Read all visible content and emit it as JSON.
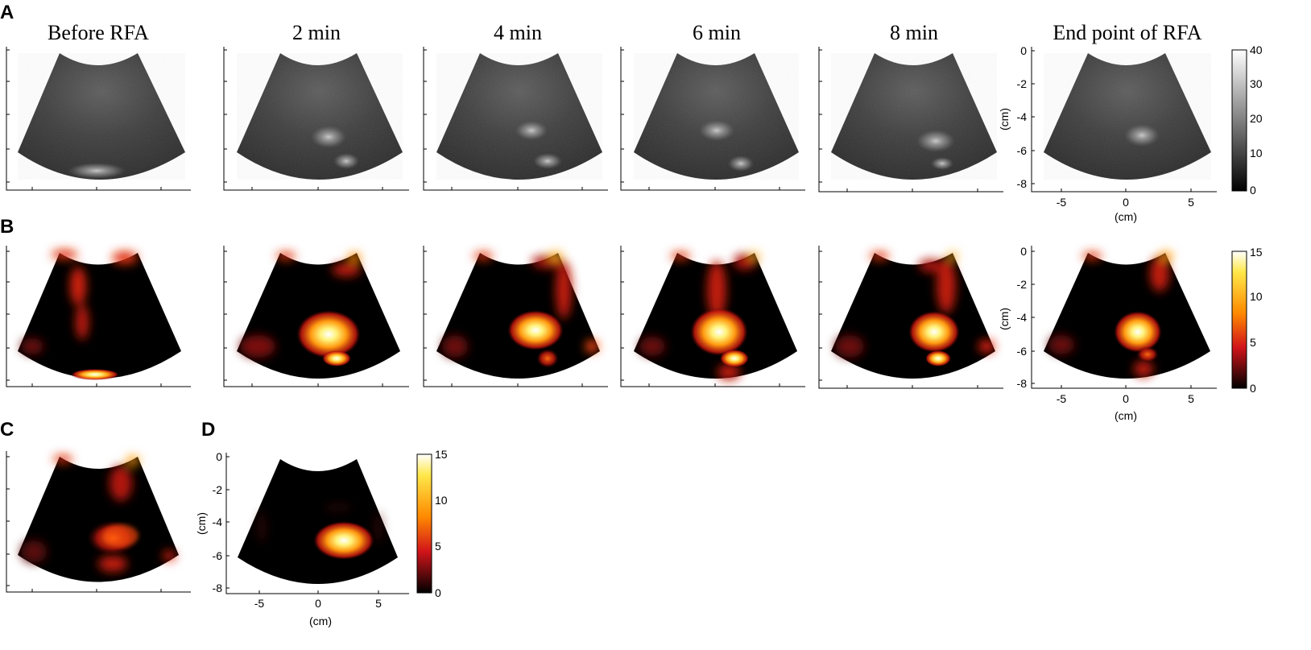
{
  "panels": {
    "a": "A",
    "b": "B",
    "c": "C",
    "d": "D"
  },
  "columns": [
    "Before RFA",
    "2 min",
    "4 min",
    "6 min",
    "8 min",
    "End point of RFA"
  ],
  "axes": {
    "unit": "(cm)",
    "y_ticks": [
      "0",
      "-2",
      "-4",
      "-6",
      "-8"
    ],
    "x_ticks": [
      "-5",
      "0",
      "5"
    ]
  },
  "colorbars": {
    "grayscale": {
      "ticks": [
        "40",
        "30",
        "20",
        "10",
        "0"
      ],
      "colors": [
        "#ffffff",
        "#000000"
      ]
    },
    "heat": {
      "ticks": [
        "15",
        "10",
        "5",
        "0"
      ],
      "colors": [
        "#ffffff",
        "#ffe84a",
        "#ff8a00",
        "#d2141a",
        "#000000"
      ]
    }
  }
}
